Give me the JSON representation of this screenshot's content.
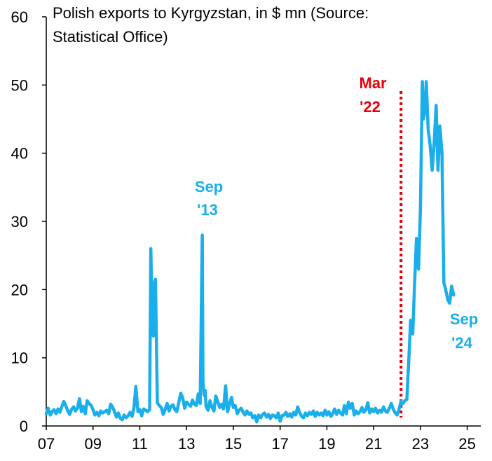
{
  "chart_data": {
    "type": "line",
    "title": "Polish exports to Kyrgyzstan, in $ mn (Source: Statistical Office)",
    "title_lines": [
      "Polish exports to Kyrgyzstan, in $ mn (Source:",
      "Statistical Office)"
    ],
    "xlabel": "",
    "ylabel": "",
    "xlim": [
      2007,
      2026
    ],
    "ylim": [
      0,
      60
    ],
    "yticks": [
      0,
      10,
      20,
      30,
      40,
      50,
      60
    ],
    "xticks": [
      {
        "value": 2007,
        "label": "07"
      },
      {
        "value": 2009,
        "label": "09"
      },
      {
        "value": 2011,
        "label": "11"
      },
      {
        "value": 2013,
        "label": "13"
      },
      {
        "value": 2015,
        "label": "15"
      },
      {
        "value": 2017,
        "label": "17"
      },
      {
        "value": 2019,
        "label": "19"
      },
      {
        "value": 2021,
        "label": "21"
      },
      {
        "value": 2023,
        "label": "23"
      },
      {
        "value": 2025,
        "label": "25"
      }
    ],
    "grid": false,
    "colors": {
      "series": "#1aaeea",
      "marker": "#e6000a",
      "axis": "#000000"
    },
    "series": [
      {
        "values": [
          [
            2007.0,
            1.8
          ],
          [
            2007.08,
            2.6
          ],
          [
            2007.17,
            1.6
          ],
          [
            2007.25,
            2.1
          ],
          [
            2007.33,
            2.4
          ],
          [
            2007.42,
            1.8
          ],
          [
            2007.5,
            2.5
          ],
          [
            2007.58,
            2.0
          ],
          [
            2007.67,
            2.9
          ],
          [
            2007.75,
            3.6
          ],
          [
            2007.83,
            3.0
          ],
          [
            2007.92,
            2.2
          ],
          [
            2008.0,
            1.7
          ],
          [
            2008.08,
            2.4
          ],
          [
            2008.17,
            2.8
          ],
          [
            2008.25,
            2.2
          ],
          [
            2008.33,
            2.6
          ],
          [
            2008.42,
            4.0
          ],
          [
            2008.5,
            2.1
          ],
          [
            2008.58,
            2.9
          ],
          [
            2008.67,
            1.8
          ],
          [
            2008.75,
            3.7
          ],
          [
            2008.83,
            3.3
          ],
          [
            2008.92,
            3.0
          ],
          [
            2009.0,
            2.4
          ],
          [
            2009.08,
            1.6
          ],
          [
            2009.17,
            2.0
          ],
          [
            2009.25,
            1.5
          ],
          [
            2009.33,
            2.2
          ],
          [
            2009.42,
            1.9
          ],
          [
            2009.5,
            2.1
          ],
          [
            2009.58,
            2.3
          ],
          [
            2009.67,
            1.8
          ],
          [
            2009.75,
            3.2
          ],
          [
            2009.83,
            2.8
          ],
          [
            2009.92,
            2.1
          ],
          [
            2010.0,
            1.3
          ],
          [
            2010.08,
            1.9
          ],
          [
            2010.17,
            1.1
          ],
          [
            2010.25,
            0.9
          ],
          [
            2010.33,
            1.6
          ],
          [
            2010.42,
            1.2
          ],
          [
            2010.5,
            1.5
          ],
          [
            2010.58,
            2.0
          ],
          [
            2010.67,
            1.4
          ],
          [
            2010.75,
            2.6
          ],
          [
            2010.83,
            5.8
          ],
          [
            2010.92,
            2.1
          ],
          [
            2011.0,
            2.4
          ],
          [
            2011.08,
            1.5
          ],
          [
            2011.17,
            2.5
          ],
          [
            2011.25,
            2.3
          ],
          [
            2011.33,
            2.1
          ],
          [
            2011.42,
            2.4
          ],
          [
            2011.47,
            26.0
          ],
          [
            2011.53,
            14.0
          ],
          [
            2011.58,
            13.2
          ],
          [
            2011.62,
            21.0
          ],
          [
            2011.67,
            21.5
          ],
          [
            2011.75,
            3.4
          ],
          [
            2011.83,
            3.0
          ],
          [
            2011.92,
            2.7
          ],
          [
            2012.0,
            1.7
          ],
          [
            2012.08,
            2.4
          ],
          [
            2012.17,
            3.3
          ],
          [
            2012.25,
            2.2
          ],
          [
            2012.33,
            2.9
          ],
          [
            2012.42,
            3.1
          ],
          [
            2012.5,
            2.4
          ],
          [
            2012.58,
            2.1
          ],
          [
            2012.67,
            3.5
          ],
          [
            2012.75,
            4.8
          ],
          [
            2012.83,
            4.2
          ],
          [
            2012.92,
            2.6
          ],
          [
            2013.0,
            3.5
          ],
          [
            2013.08,
            3.2
          ],
          [
            2013.17,
            2.9
          ],
          [
            2013.25,
            3.8
          ],
          [
            2013.33,
            3.2
          ],
          [
            2013.42,
            3.0
          ],
          [
            2013.5,
            4.7
          ],
          [
            2013.58,
            3.3
          ],
          [
            2013.67,
            28.0
          ],
          [
            2013.7,
            6.5
          ],
          [
            2013.75,
            4.5
          ],
          [
            2013.8,
            5.2
          ],
          [
            2013.83,
            2.9
          ],
          [
            2013.92,
            2.3
          ],
          [
            2014.0,
            3.7
          ],
          [
            2014.08,
            2.8
          ],
          [
            2014.17,
            2.2
          ],
          [
            2014.25,
            4.4
          ],
          [
            2014.33,
            3.6
          ],
          [
            2014.42,
            2.7
          ],
          [
            2014.5,
            3.2
          ],
          [
            2014.58,
            2.5
          ],
          [
            2014.67,
            5.9
          ],
          [
            2014.75,
            2.1
          ],
          [
            2014.83,
            3.1
          ],
          [
            2014.92,
            4.2
          ],
          [
            2015.0,
            2.7
          ],
          [
            2015.08,
            3.0
          ],
          [
            2015.17,
            1.8
          ],
          [
            2015.25,
            2.3
          ],
          [
            2015.33,
            2.6
          ],
          [
            2015.42,
            2.0
          ],
          [
            2015.5,
            1.6
          ],
          [
            2015.58,
            2.2
          ],
          [
            2015.67,
            1.7
          ],
          [
            2015.75,
            1.9
          ],
          [
            2015.83,
            1.2
          ],
          [
            2015.92,
            1.5
          ],
          [
            2016.0,
            0.6
          ],
          [
            2016.08,
            1.6
          ],
          [
            2016.17,
            1.2
          ],
          [
            2016.25,
            1.7
          ],
          [
            2016.33,
            1.9
          ],
          [
            2016.42,
            1.3
          ],
          [
            2016.5,
            1.7
          ],
          [
            2016.58,
            1.1
          ],
          [
            2016.67,
            1.6
          ],
          [
            2016.75,
            1.5
          ],
          [
            2016.83,
            1.2
          ],
          [
            2016.92,
            1.9
          ],
          [
            2017.0,
            0.7
          ],
          [
            2017.08,
            1.5
          ],
          [
            2017.17,
            1.6
          ],
          [
            2017.25,
            2.0
          ],
          [
            2017.33,
            1.4
          ],
          [
            2017.42,
            1.8
          ],
          [
            2017.5,
            1.3
          ],
          [
            2017.58,
            2.0
          ],
          [
            2017.67,
            1.6
          ],
          [
            2017.75,
            2.8
          ],
          [
            2017.83,
            2.0
          ],
          [
            2017.92,
            1.4
          ],
          [
            2018.0,
            1.2
          ],
          [
            2018.08,
            1.9
          ],
          [
            2018.17,
            1.5
          ],
          [
            2018.25,
            2.0
          ],
          [
            2018.33,
            1.7
          ],
          [
            2018.42,
            2.2
          ],
          [
            2018.5,
            1.4
          ],
          [
            2018.58,
            2.0
          ],
          [
            2018.67,
            1.6
          ],
          [
            2018.75,
            1.9
          ],
          [
            2018.83,
            1.5
          ],
          [
            2018.92,
            2.3
          ],
          [
            2019.0,
            1.6
          ],
          [
            2019.08,
            2.1
          ],
          [
            2019.17,
            1.4
          ],
          [
            2019.25,
            1.8
          ],
          [
            2019.33,
            2.5
          ],
          [
            2019.42,
            1.7
          ],
          [
            2019.5,
            2.3
          ],
          [
            2019.58,
            1.9
          ],
          [
            2019.67,
            1.6
          ],
          [
            2019.75,
            3.0
          ],
          [
            2019.83,
            1.8
          ],
          [
            2019.92,
            3.5
          ],
          [
            2020.0,
            2.6
          ],
          [
            2020.08,
            3.3
          ],
          [
            2020.17,
            1.6
          ],
          [
            2020.25,
            2.2
          ],
          [
            2020.33,
            1.8
          ],
          [
            2020.42,
            2.1
          ],
          [
            2020.5,
            2.7
          ],
          [
            2020.58,
            2.0
          ],
          [
            2020.67,
            2.4
          ],
          [
            2020.75,
            3.4
          ],
          [
            2020.83,
            1.9
          ],
          [
            2020.92,
            2.5
          ],
          [
            2021.0,
            2.1
          ],
          [
            2021.08,
            2.6
          ],
          [
            2021.17,
            1.9
          ],
          [
            2021.25,
            2.3
          ],
          [
            2021.33,
            2.0
          ],
          [
            2021.42,
            2.8
          ],
          [
            2021.5,
            2.2
          ],
          [
            2021.58,
            2.0
          ],
          [
            2021.67,
            2.6
          ],
          [
            2021.75,
            3.3
          ],
          [
            2021.83,
            2.5
          ],
          [
            2021.92,
            1.9
          ],
          [
            2022.0,
            1.6
          ],
          [
            2022.08,
            2.4
          ],
          [
            2022.17,
            3.6
          ],
          [
            2022.25,
            3.3
          ],
          [
            2022.33,
            3.7
          ],
          [
            2022.42,
            3.9
          ],
          [
            2022.5,
            9.5
          ],
          [
            2022.58,
            15.5
          ],
          [
            2022.67,
            13.5
          ],
          [
            2022.75,
            21.0
          ],
          [
            2022.83,
            27.5
          ],
          [
            2022.92,
            23.0
          ],
          [
            2023.0,
            32.0
          ],
          [
            2023.08,
            50.5
          ],
          [
            2023.13,
            45.0
          ],
          [
            2023.2,
            46.5
          ],
          [
            2023.25,
            50.5
          ],
          [
            2023.33,
            43.5
          ],
          [
            2023.42,
            41.0
          ],
          [
            2023.5,
            37.5
          ],
          [
            2023.58,
            41.0
          ],
          [
            2023.67,
            47.0
          ],
          [
            2023.75,
            37.5
          ],
          [
            2023.83,
            44.0
          ],
          [
            2023.92,
            40.0
          ],
          [
            2024.0,
            21.0
          ],
          [
            2024.08,
            20.0
          ],
          [
            2024.17,
            18.5
          ],
          [
            2024.25,
            18.0
          ],
          [
            2024.33,
            20.5
          ],
          [
            2024.42,
            19.2
          ]
        ]
      }
    ],
    "annotations": [
      {
        "text": "Sep\n'13",
        "lines": [
          "Sep",
          "'13"
        ],
        "x": 2013.67,
        "color": "#1aaeea"
      },
      {
        "text": "Mar\n'22",
        "lines": [
          "Mar",
          "'22"
        ],
        "x": 2022.17,
        "color": "#e6000a"
      },
      {
        "text": "Sep\n'24",
        "lines": [
          "Sep",
          "'24"
        ],
        "x": 2024.67,
        "color": "#1aaeea"
      }
    ],
    "vertical_marker": {
      "x": 2022.17,
      "style": "dotted",
      "color": "#e6000a"
    }
  }
}
